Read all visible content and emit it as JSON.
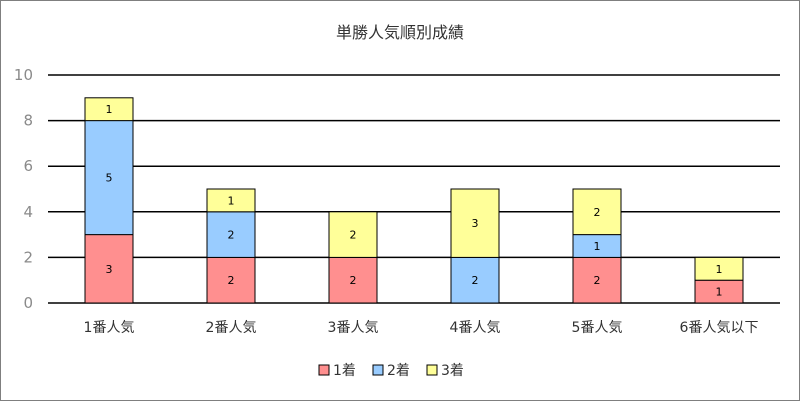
{
  "chart_data": {
    "type": "bar",
    "stacked": true,
    "title": "単勝人気順別成績",
    "categories": [
      "1番人気",
      "2番人気",
      "3番人気",
      "4番人気",
      "5番人気",
      "6番人気以下"
    ],
    "series": [
      {
        "name": "1着",
        "color": "#ff8f8f",
        "values": [
          3,
          2,
          2,
          0,
          2,
          1
        ]
      },
      {
        "name": "2着",
        "color": "#99ccff",
        "values": [
          5,
          2,
          0,
          2,
          1,
          0
        ]
      },
      {
        "name": "3着",
        "color": "#ffff99",
        "values": [
          1,
          1,
          2,
          3,
          2,
          1
        ]
      }
    ],
    "ylim": [
      0,
      10
    ],
    "yticks": [
      0,
      2,
      4,
      6,
      8,
      10
    ],
    "grid": true,
    "legend": "bottom",
    "xlabel": "",
    "ylabel": ""
  }
}
